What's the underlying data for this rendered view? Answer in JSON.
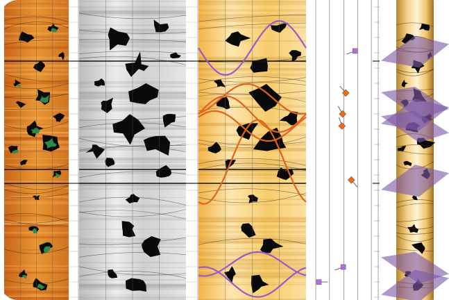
{
  "panels": [
    {
      "name": "amplitude-image-track",
      "palette": "orange"
    },
    {
      "name": "grayscale-image-track",
      "palette": "gray"
    },
    {
      "name": "interpreted-image-track",
      "palette": "amber"
    },
    {
      "name": "tadpole-dip-track",
      "palette": "none"
    },
    {
      "name": "borehole-3d-track",
      "palette": "amber"
    }
  ],
  "colors": {
    "orange_bg": "#e58a26",
    "orange_dark": "#b84a0c",
    "amber_bg": "#f6c75a",
    "amber_light": "#fbe3a6",
    "gray_bg": "#d8d8d8",
    "dark_feature": "#0a0a0a",
    "green_feature": "#2c8a4a",
    "orange_sinusoid": "#e0641e",
    "purple_sinusoid": "#9b59c9",
    "tadpole_orange": "#ef6b1c",
    "tadpole_purple": "#b36cf0",
    "plane_purple": "#7d5aa8"
  },
  "tadpoles": [
    {
      "kind": "purple",
      "depth_frac": 0.17,
      "dip_frac": 0.63,
      "azimuth": 250
    },
    {
      "kind": "orange",
      "depth_frac": 0.31,
      "dip_frac": 0.48,
      "azimuth": 320
    },
    {
      "kind": "orange",
      "depth_frac": 0.38,
      "dip_frac": 0.43,
      "azimuth": 330
    },
    {
      "kind": "orange",
      "depth_frac": 0.42,
      "dip_frac": 0.42,
      "azimuth": 340
    },
    {
      "kind": "orange",
      "depth_frac": 0.6,
      "dip_frac": 0.57,
      "azimuth": 140
    },
    {
      "kind": "purple",
      "depth_frac": 0.89,
      "dip_frac": 0.44,
      "azimuth": 250
    },
    {
      "kind": "purple",
      "depth_frac": 0.94,
      "dip_frac": 0.05,
      "azimuth": 90
    }
  ],
  "sinusoids": [
    {
      "kind": "purple",
      "phase": 0.0,
      "amp": 0.09,
      "center_frac": 0.16
    },
    {
      "kind": "orange",
      "phase": 0.3,
      "amp": 0.05,
      "center_frac": 0.33
    },
    {
      "kind": "orange",
      "phase": 0.5,
      "amp": 0.06,
      "center_frac": 0.38
    },
    {
      "kind": "orange",
      "phase": 0.6,
      "amp": 0.05,
      "center_frac": 0.42
    },
    {
      "kind": "orange",
      "phase": 0.2,
      "amp": 0.14,
      "center_frac": 0.54
    },
    {
      "kind": "purple",
      "phase": 0.2,
      "amp": 0.04,
      "center_frac": 0.88
    },
    {
      "kind": "purple",
      "phase": 0.7,
      "amp": 0.05,
      "center_frac": 0.94
    }
  ],
  "planes": [
    {
      "depth_frac": 0.17
    },
    {
      "depth_frac": 0.34
    },
    {
      "depth_frac": 0.38
    },
    {
      "depth_frac": 0.42
    },
    {
      "depth_frac": 0.6
    },
    {
      "depth_frac": 0.89
    },
    {
      "depth_frac": 0.95
    }
  ]
}
